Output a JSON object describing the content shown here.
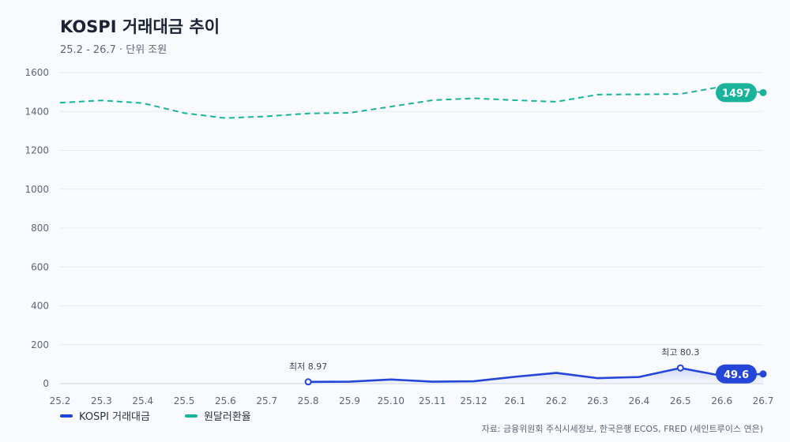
{
  "header": {
    "title": "KOSPI 거래대금 추이",
    "subtitle": "25.2 - 26.7 · 단위 조원"
  },
  "source": "자료: 금융위원회 주식시세정보, 한국은행 ECOS, FRED (세인트루이스 연은)",
  "colors": {
    "kospi": "#2446d8",
    "fx": "#19b39b",
    "grid": "#e6e9ef",
    "axis_text": "#5d6778"
  },
  "chart_data": {
    "type": "line",
    "title": "KOSPI 거래대금 추이",
    "subtitle": "25.2 - 26.7 · 단위 조원",
    "x": [
      "25.2",
      "25.3",
      "25.4",
      "25.5",
      "25.6",
      "25.7",
      "25.8",
      "25.9",
      "25.10",
      "25.11",
      "25.12",
      "26.1",
      "26.2",
      "26.3",
      "26.4",
      "26.5",
      "26.6",
      "26.7"
    ],
    "ylim": [
      0,
      1600
    ],
    "yticks": [
      0,
      200,
      400,
      600,
      800,
      1000,
      1200,
      1400,
      1600
    ],
    "grid": true,
    "legend_position": "bottom-left",
    "series": [
      {
        "name": "KOSPI 거래대금",
        "style": "solid",
        "area_fill": true,
        "values": [
          null,
          null,
          null,
          null,
          null,
          null,
          8.97,
          10,
          21,
          10,
          12,
          35,
          55,
          28,
          34,
          80.3,
          40,
          49.6
        ],
        "end_label": "49.6",
        "annotations": [
          {
            "index": 6,
            "text": "최저 8.97"
          },
          {
            "index": 15,
            "text": "최고 80.3"
          }
        ]
      },
      {
        "name": "원달러환율",
        "style": "dashed",
        "values": [
          1445,
          1457,
          1443,
          1392,
          1366,
          1375,
          1390,
          1393,
          1425,
          1458,
          1468,
          1458,
          1450,
          1487,
          1488,
          1490,
          1528,
          1497
        ],
        "end_label": "1497"
      }
    ]
  }
}
